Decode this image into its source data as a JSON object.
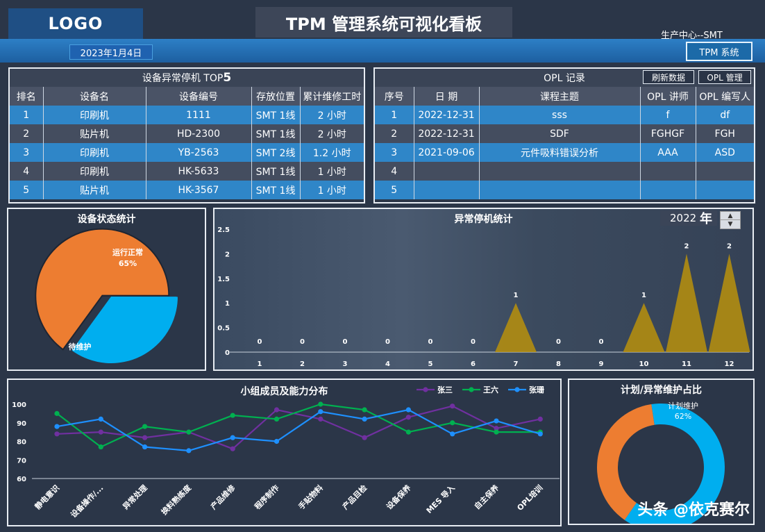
{
  "header": {
    "logo": "LOGO",
    "title": "TPM 管理系统可视化看板",
    "center": "生产中心--SMT",
    "date": "2023年1月4日",
    "tpm_button": "TPM 系统"
  },
  "top5": {
    "title_text": "设备异常停机 TOP ",
    "title_num": "5",
    "columns": [
      "排名",
      "设备名",
      "设备编号",
      "存放位置",
      "累计维修工时"
    ],
    "rows": [
      [
        "1",
        "印刷机",
        "1111",
        "SMT 1线",
        "2 小时"
      ],
      [
        "2",
        "贴片机",
        "HD-2300",
        "SMT 1线",
        "2 小时"
      ],
      [
        "3",
        "印刷机",
        "YB-2563",
        "SMT 2线",
        "1.2 小时"
      ],
      [
        "4",
        "印刷机",
        "HK-5633",
        "SMT 1线",
        "1 小时"
      ],
      [
        "5",
        "贴片机",
        "HK-3567",
        "SMT 1线",
        "1 小时"
      ]
    ]
  },
  "opl": {
    "title": "OPL 记录",
    "refresh_button": "刷新数据",
    "manage_button": "OPL 管理",
    "columns": [
      "序号",
      "日 期",
      "课程主题",
      "OPL 讲师",
      "OPL 编写人"
    ],
    "rows": [
      [
        "1",
        "2022-12-31",
        "sss",
        "f",
        "df"
      ],
      [
        "2",
        "2022-12-31",
        "SDF",
        "FGHGF",
        "FGH"
      ],
      [
        "3",
        "2021-09-06",
        "元件吸料错误分析",
        "AAA",
        "ASD"
      ],
      [
        "4",
        "",
        "",
        "",
        ""
      ],
      [
        "5",
        "",
        "",
        "",
        ""
      ]
    ]
  },
  "status_pie": {
    "title": "设备状态统计",
    "running_label": "运行正常",
    "running_pct": "65%",
    "maint_label": "待维护",
    "colors": {
      "running": "#00aeef",
      "maint": "#ed7d31"
    }
  },
  "downtime": {
    "title": "异常停机统计",
    "year_value": "2022",
    "year_unit": "年"
  },
  "ability": {
    "title": "小组成员及能力分布",
    "legend": [
      "张三",
      "王六",
      "张珊"
    ]
  },
  "plan_ratio": {
    "title": "计划/异常维护占比",
    "plan_label": "计划维护",
    "plan_pct": "62%",
    "colors": {
      "plan": "#00aeef",
      "abnormal": "#ed7d31"
    }
  },
  "watermark": "头条 @依克赛尔",
  "chart_data": [
    {
      "type": "pie",
      "title": "设备状态统计",
      "labels": [
        "运行正常",
        "待维护"
      ],
      "values": [
        65,
        35
      ]
    },
    {
      "type": "area",
      "title": "异常停机统计",
      "categories": [
        "1",
        "2",
        "3",
        "4",
        "5",
        "6",
        "7",
        "8",
        "9",
        "10",
        "11",
        "12"
      ],
      "values": [
        0,
        0,
        0,
        0,
        0,
        0,
        1,
        0,
        0,
        1,
        2,
        2
      ],
      "ylim": [
        0,
        2.5
      ],
      "yticks": [
        "0",
        "0.5",
        "1",
        "1.5",
        "2",
        "2.5"
      ],
      "color": "#b8900c"
    },
    {
      "type": "line",
      "title": "小组成员及能力分布",
      "categories": [
        "静电意识",
        "设备操作/...",
        "异常处理",
        "换料熟练度",
        "产品维修",
        "程序制作",
        "手贴物料",
        "产品目检",
        "设备保养",
        "MES 导入",
        "自主保养",
        "OPL培训"
      ],
      "ylim": [
        60,
        100
      ],
      "yticks": [
        "60",
        "70",
        "80",
        "90",
        "100"
      ],
      "series": [
        {
          "name": "张三",
          "color": "#7030a0",
          "values": [
            84,
            85,
            82,
            85,
            76,
            97,
            92,
            82,
            93,
            99,
            87,
            92
          ]
        },
        {
          "name": "王六",
          "color": "#00b050",
          "values": [
            95,
            77,
            88,
            85,
            94,
            92,
            100,
            97,
            85,
            90,
            85,
            85
          ]
        },
        {
          "name": "张珊",
          "color": "#1e90ff",
          "values": [
            88,
            92,
            77,
            75,
            82,
            80,
            96,
            92,
            97,
            84,
            91,
            84
          ]
        }
      ]
    },
    {
      "type": "pie",
      "title": "计划/异常维护占比",
      "labels": [
        "计划维护",
        "异常维护"
      ],
      "values": [
        62,
        38
      ]
    }
  ]
}
